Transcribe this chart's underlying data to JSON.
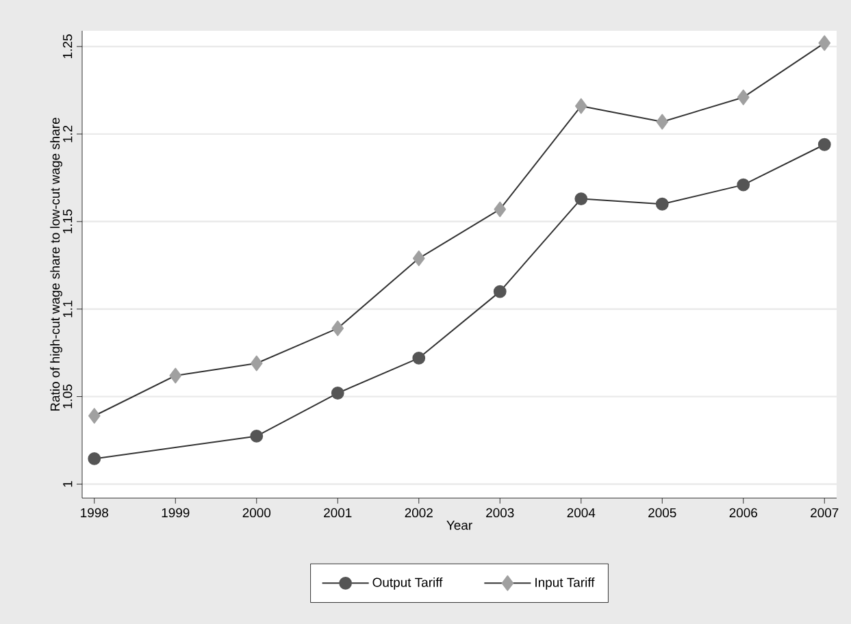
{
  "chart_data": {
    "type": "line",
    "xlabel": "Year",
    "ylabel": "Ratio of high-cut wage share to low-cut wage share",
    "x": [
      1998,
      1999,
      2000,
      2001,
      2002,
      2003,
      2004,
      2005,
      2006,
      2007
    ],
    "series": [
      {
        "name": "Output Tariff",
        "color": "#555555",
        "marker": "circle",
        "x": [
          1998,
          2000,
          2001,
          2002,
          2003,
          2004,
          2005,
          2006,
          2007
        ],
        "values": [
          1.0145,
          1.0274,
          1.052,
          1.072,
          1.11,
          1.163,
          1.16,
          1.171,
          1.194
        ]
      },
      {
        "name": "Input Tariff",
        "color": "#a0a0a0",
        "marker": "diamond",
        "values": [
          1.039,
          1.062,
          1.069,
          1.089,
          1.129,
          1.157,
          1.216,
          1.207,
          1.221,
          1.252
        ]
      }
    ],
    "xlim": [
      1997.85,
      2007.15
    ],
    "ylim": [
      0.992,
      1.259
    ],
    "xticks": [
      1998,
      1999,
      2000,
      2001,
      2002,
      2003,
      2004,
      2005,
      2006,
      2007
    ],
    "yticks": [
      1,
      1.05,
      1.1,
      1.15,
      1.2,
      1.25
    ],
    "grid": "y",
    "legend": "bottom",
    "line_style": "solid"
  }
}
